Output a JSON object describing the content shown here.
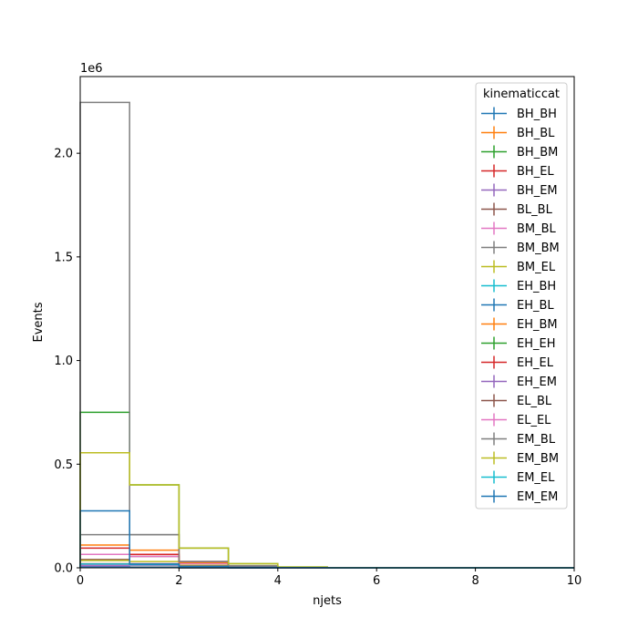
{
  "chart_data": {
    "type": "histogram-step",
    "xlabel": "njets",
    "ylabel": "Events",
    "y_offset_label": "1e6",
    "xlim": [
      0,
      10
    ],
    "ylim": [
      0,
      2.37
    ],
    "y_scale_factor": 1000000,
    "x_ticks": [
      "0",
      "2",
      "4",
      "6",
      "8",
      "10"
    ],
    "x_tick_values": [
      0,
      2,
      4,
      6,
      8,
      10
    ],
    "y_ticks": [
      "0.0",
      "0.5",
      "1.0",
      "1.5",
      "2.0"
    ],
    "y_tick_values": [
      0,
      0.5,
      1.0,
      1.5,
      2.0
    ],
    "bin_edges": [
      0,
      1,
      2,
      3,
      4,
      5,
      6,
      7,
      8,
      9,
      10
    ],
    "legend": {
      "title": "kinematiccat",
      "placement": "top-right"
    },
    "series": [
      {
        "name": "BH_BH",
        "color": "#1f77b4",
        "values": [
          0.003,
          0.0015,
          0.0005,
          0.0002,
          0,
          0,
          0,
          0,
          0,
          0
        ]
      },
      {
        "name": "BH_BL",
        "color": "#ff7f0e",
        "values": [
          0.004,
          0.002,
          0.0006,
          0.0002,
          0,
          0,
          0,
          0,
          0,
          0
        ]
      },
      {
        "name": "BH_BM",
        "color": "#2ca02c",
        "values": [
          0.008,
          0.004,
          0.001,
          0.0003,
          0,
          0,
          0,
          0,
          0,
          0
        ]
      },
      {
        "name": "BH_EL",
        "color": "#d62728",
        "values": [
          0.003,
          0.0015,
          0.0005,
          0.0001,
          0,
          0,
          0,
          0,
          0,
          0
        ]
      },
      {
        "name": "BH_EM",
        "color": "#9467bd",
        "values": [
          0.005,
          0.0025,
          0.0008,
          0.0002,
          0,
          0,
          0,
          0,
          0,
          0
        ]
      },
      {
        "name": "BL_BL",
        "color": "#8c564b",
        "values": [
          0.04,
          0.055,
          0.025,
          0.008,
          0.002,
          0.0005,
          0,
          0,
          0,
          0
        ]
      },
      {
        "name": "BM_BL",
        "color": "#e377c2",
        "values": [
          0.065,
          0.055,
          0.02,
          0.006,
          0.0015,
          0.0003,
          0,
          0,
          0,
          0
        ]
      },
      {
        "name": "BM_BM",
        "color": "#7f7f7f",
        "values": [
          0.16,
          0.16,
          0.03,
          0.009,
          0.002,
          0.0005,
          0,
          0,
          0,
          0
        ]
      },
      {
        "name": "BM_EL",
        "color": "#bcbd22",
        "values": [
          0.035,
          0.03,
          0.012,
          0.004,
          0.001,
          0.0002,
          0,
          0,
          0,
          0
        ]
      },
      {
        "name": "EH_BH",
        "color": "#17becf",
        "values": [
          0.002,
          0.001,
          0.0003,
          0.0001,
          0,
          0,
          0,
          0,
          0,
          0
        ]
      },
      {
        "name": "EH_BL",
        "color": "#1f77b4",
        "values": [
          0.003,
          0.0015,
          0.0005,
          0.0001,
          0,
          0,
          0,
          0,
          0,
          0
        ]
      },
      {
        "name": "EH_BM",
        "color": "#ff7f0e",
        "values": [
          0.11,
          0.085,
          0.025,
          0.007,
          0.0015,
          0.0003,
          0,
          0,
          0,
          0
        ]
      },
      {
        "name": "EH_EH",
        "color": "#2ca02c",
        "values": [
          0.75,
          0.4,
          0.095,
          0.02,
          0.004,
          0.0008,
          0.0001,
          0,
          0,
          0
        ]
      },
      {
        "name": "EH_EL",
        "color": "#d62728",
        "values": [
          0.095,
          0.065,
          0.03,
          0.008,
          0.002,
          0.0004,
          0,
          0,
          0,
          0
        ]
      },
      {
        "name": "EH_EM",
        "color": "#9467bd",
        "values": [
          0.01,
          0.02,
          0.008,
          0.002,
          0.0005,
          0.0001,
          0,
          0,
          0,
          0
        ]
      },
      {
        "name": "EL_BL",
        "color": "#8c564b",
        "values": [
          0.02,
          0.018,
          0.008,
          0.002,
          0.0005,
          0.0001,
          0,
          0,
          0,
          0
        ]
      },
      {
        "name": "EL_EL",
        "color": "#e377c2",
        "values": [
          0.015,
          0.012,
          0.005,
          0.0015,
          0.0003,
          0.0001,
          0,
          0,
          0,
          0
        ]
      },
      {
        "name": "EM_BL",
        "color": "#7f7f7f",
        "values": [
          2.245,
          0.16,
          0.03,
          0.009,
          0.002,
          0.0005,
          0,
          0,
          0,
          0
        ]
      },
      {
        "name": "EM_BM",
        "color": "#bcbd22",
        "values": [
          0.555,
          0.4,
          0.095,
          0.02,
          0.004,
          0.0008,
          0.0001,
          0,
          0,
          0
        ]
      },
      {
        "name": "EM_EL",
        "color": "#17becf",
        "values": [
          0.018,
          0.015,
          0.006,
          0.0015,
          0.0003,
          0.0001,
          0,
          0,
          0,
          0
        ]
      },
      {
        "name": "EM_EM",
        "color": "#1f77b4",
        "values": [
          0.275,
          0.018,
          0.006,
          0.0015,
          0.0003,
          0.0001,
          0,
          0,
          0,
          0
        ]
      }
    ]
  }
}
